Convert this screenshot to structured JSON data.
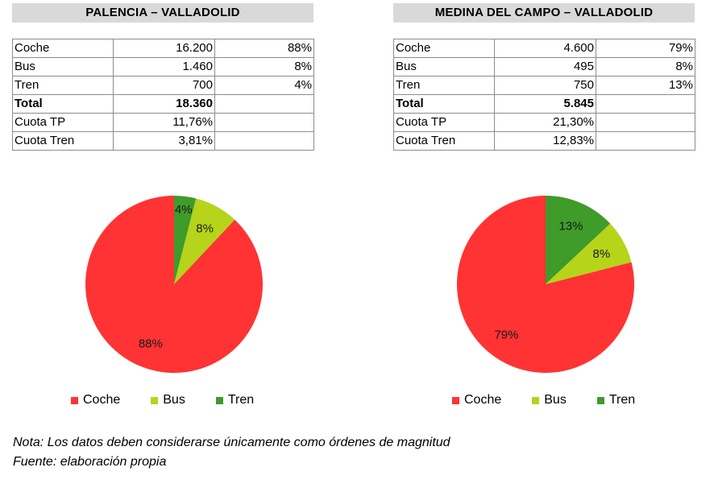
{
  "chart_data": [
    {
      "type": "pie",
      "title": "PALENCIA – VALLADOLID",
      "table": [
        [
          "Coche",
          "16.200",
          "88%"
        ],
        [
          "Bus",
          "1.460",
          "8%"
        ],
        [
          "Tren",
          "700",
          "4%"
        ],
        [
          "Total",
          "18.360",
          ""
        ],
        [
          "Cuota TP",
          "11,76%",
          ""
        ],
        [
          "Cuota Tren",
          "3,81%",
          ""
        ]
      ],
      "slices": [
        {
          "label": "Tren",
          "value": 4,
          "text": "4%",
          "color": "#3f9b2a"
        },
        {
          "label": "Bus",
          "value": 8,
          "text": "8%",
          "color": "#b5d41a"
        },
        {
          "label": "Coche",
          "value": 88,
          "text": "88%",
          "color": "#ff3333"
        }
      ]
    },
    {
      "type": "pie",
      "title": "MEDINA DEL CAMPO – VALLADOLID",
      "table": [
        [
          "Coche",
          "4.600",
          "79%"
        ],
        [
          "Bus",
          "495",
          "8%"
        ],
        [
          "Tren",
          "750",
          "13%"
        ],
        [
          "Total",
          "5.845",
          ""
        ],
        [
          "Cuota TP",
          "21,30%",
          ""
        ],
        [
          "Cuota Tren",
          "12,83%",
          ""
        ]
      ],
      "slices": [
        {
          "label": "Tren",
          "value": 13,
          "text": "13%",
          "color": "#3f9b2a"
        },
        {
          "label": "Bus",
          "value": 8,
          "text": "8%",
          "color": "#b5d41a"
        },
        {
          "label": "Coche",
          "value": 79,
          "text": "79%",
          "color": "#ff3333"
        }
      ]
    }
  ],
  "legend": [
    {
      "label": "Coche",
      "color": "#ff3333"
    },
    {
      "label": "Bus",
      "color": "#b5d41a"
    },
    {
      "label": "Tren",
      "color": "#3f9b2a"
    }
  ],
  "footer": {
    "note": "Nota: Los datos deben considerarse únicamente como órdenes de magnitud",
    "source": "Fuente: elaboración propia"
  }
}
